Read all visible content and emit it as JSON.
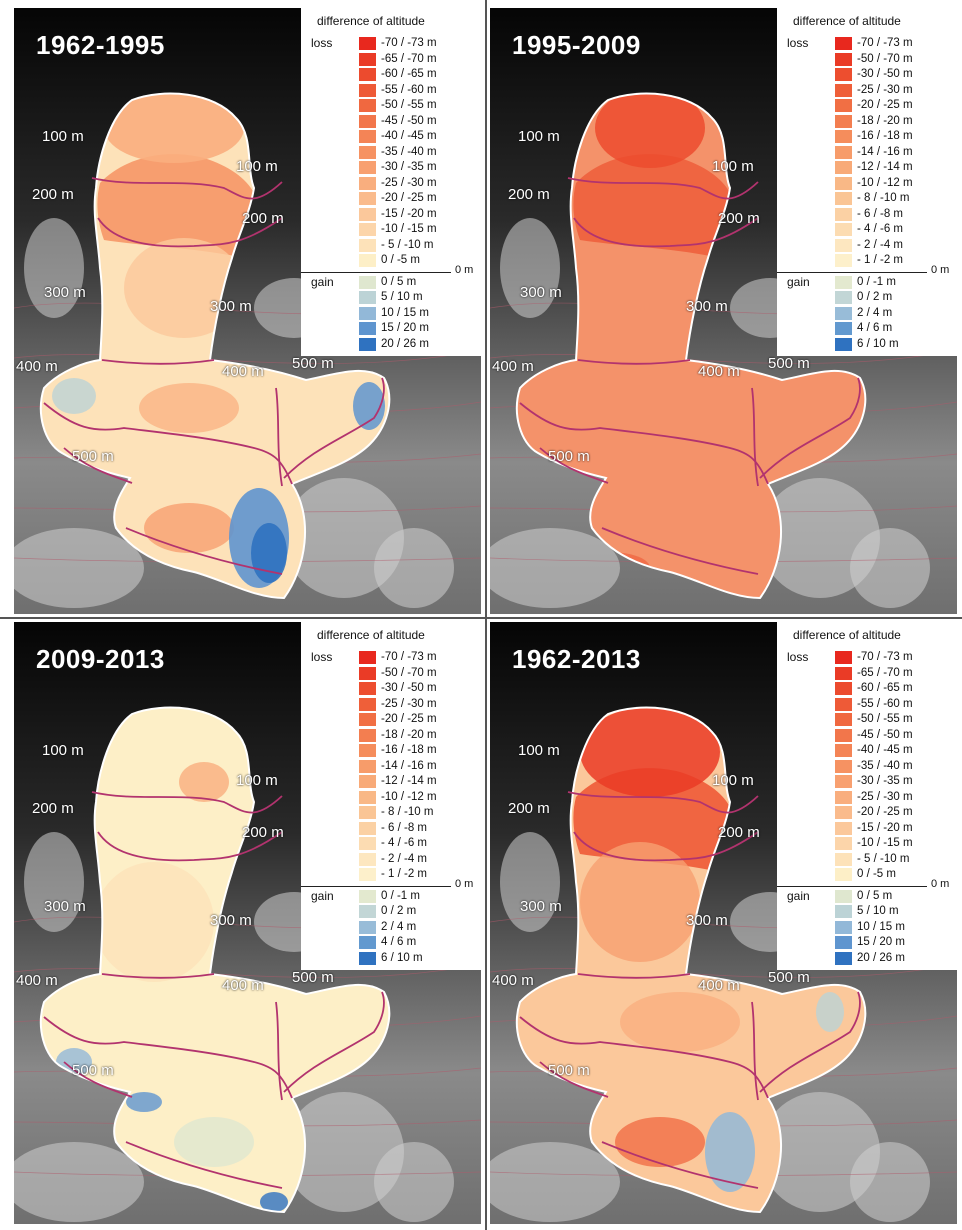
{
  "panels": [
    {
      "title": "1962-1995",
      "palette": "full",
      "contour_labels": [
        "100 m",
        "100 m",
        "200 m",
        "200 m",
        "300 m",
        "300 m",
        "400 m",
        "400 m",
        "500 m",
        "500 m"
      ],
      "fill_pattern": "mixed_loss_upper_gain_lower"
    },
    {
      "title": "1995-2009",
      "palette": "recent",
      "contour_labels": [
        "100 m",
        "100 m",
        "200 m",
        "200 m",
        "300 m",
        "300 m",
        "400 m",
        "400 m",
        "500 m",
        "500 m"
      ],
      "fill_pattern": "uniform_loss"
    },
    {
      "title": "2009-2013",
      "palette": "recent",
      "contour_labels": [
        "100 m",
        "100 m",
        "200 m",
        "200 m",
        "300 m",
        "300 m",
        "400 m",
        "400 m",
        "500 m",
        "500 m"
      ],
      "fill_pattern": "small_change"
    },
    {
      "title": "1962-2013",
      "palette": "full",
      "contour_labels": [
        "100 m",
        "100 m",
        "200 m",
        "200 m",
        "300 m",
        "300 m",
        "400 m",
        "400 m",
        "500 m",
        "500 m"
      ],
      "fill_pattern": "strong_loss_upper"
    }
  ],
  "legends": {
    "title": "difference of altitude",
    "loss_label": "loss",
    "gain_label": "gain",
    "zero_label": "0 m",
    "full": {
      "loss": [
        {
          "label": "-70 / -73 m",
          "color": "#e8281e"
        },
        {
          "label": "-65 / -70 m",
          "color": "#ea3b26"
        },
        {
          "label": "-60 / -65 m",
          "color": "#ec4b2e"
        },
        {
          "label": "-55 / -60 m",
          "color": "#ee5a37"
        },
        {
          "label": "-50 / -55 m",
          "color": "#f06840"
        },
        {
          "label": "-45 / -50 m",
          "color": "#f2764b"
        },
        {
          "label": "-40 / -45 m",
          "color": "#f48456"
        },
        {
          "label": "-35 / -40 m",
          "color": "#f69262"
        },
        {
          "label": "-30 / -35 m",
          "color": "#f8a070"
        },
        {
          "label": "-25 / -30 m",
          "color": "#f9ae7e"
        },
        {
          "label": "-20 / -25 m",
          "color": "#fabb8c"
        },
        {
          "label": "-15 / -20 m",
          "color": "#fbc89b"
        },
        {
          "label": "-10 / -15 m",
          "color": "#fcd5aa"
        },
        {
          "label": "- 5 / -10 m",
          "color": "#fde2b9"
        },
        {
          "label": "0 / -5 m",
          "color": "#fdefc7"
        }
      ],
      "gain": [
        {
          "label": "0 / 5 m",
          "color": "#dfe7cf"
        },
        {
          "label": "5 / 10 m",
          "color": "#bcd3d6"
        },
        {
          "label": "10 / 15 m",
          "color": "#92b8d8"
        },
        {
          "label": "15 / 20 m",
          "color": "#5f95cf"
        },
        {
          "label": "20 / 26 m",
          "color": "#2f72c0"
        }
      ]
    },
    "recent": {
      "loss": [
        {
          "label": "-70 / -73 m",
          "color": "#e8281e"
        },
        {
          "label": "-50 / -70 m",
          "color": "#ea3b26"
        },
        {
          "label": "-30 / -50 m",
          "color": "#ed4e2f"
        },
        {
          "label": "-25 / -30 m",
          "color": "#ef5f39"
        },
        {
          "label": "-20 / -25 m",
          "color": "#f16f44"
        },
        {
          "label": "-18 / -20 m",
          "color": "#f37e50"
        },
        {
          "label": "-16 / -18 m",
          "color": "#f58d5c"
        },
        {
          "label": "-14 / -16 m",
          "color": "#f79c6a"
        },
        {
          "label": "-12 / -14 m",
          "color": "#f8aa78"
        },
        {
          "label": "-10 / -12 m",
          "color": "#f9b886"
        },
        {
          "label": "- 8 / -10 m",
          "color": "#fac595"
        },
        {
          "label": "- 6 / -8 m",
          "color": "#fbd1a4"
        },
        {
          "label": "- 4 / -6 m",
          "color": "#fcdcb2"
        },
        {
          "label": "- 2 / -4 m",
          "color": "#fde7c0"
        },
        {
          "label": "- 1 / -2 m",
          "color": "#fdf0cb"
        }
      ],
      "gain": [
        {
          "label": "0 / -1 m",
          "color": "#e3e9cf"
        },
        {
          "label": "0 / 2 m",
          "color": "#c2d6d6"
        },
        {
          "label": "2 / 4 m",
          "color": "#98bcd8"
        },
        {
          "label": "4 / 6 m",
          "color": "#6299cf"
        },
        {
          "label": "6 / 10 m",
          "color": "#2f72c0"
        }
      ]
    }
  }
}
